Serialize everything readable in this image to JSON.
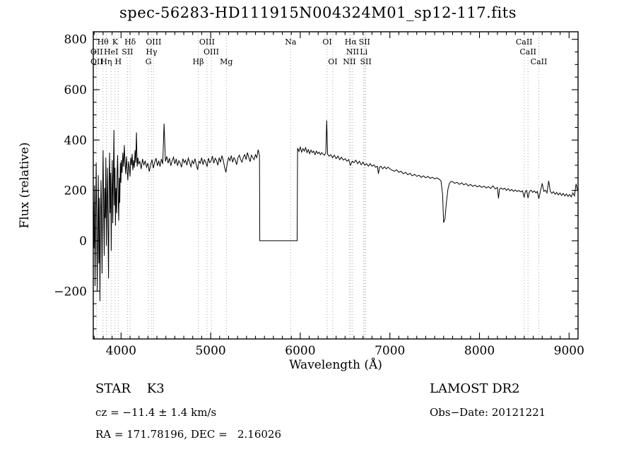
{
  "title": "spec-56283-HD111915N004324M01_sp12-117.fits",
  "annotations": {
    "object_class": "STAR    K3",
    "survey": "LAMOST DR2",
    "cz": "cz = −11.4 ± 1.4 km/s",
    "obs_date": "Obs−Date: 20121221",
    "radec": "RA = 171.78196, DEC =   2.16026"
  },
  "chart_data": {
    "type": "line",
    "title": "spec-56283-HD111915N004324M01_sp12-117.fits",
    "xlabel": "Wavelength (Å)",
    "ylabel": "Flux (relative)",
    "xlim": [
      3690,
      9100
    ],
    "ylim": [
      -390,
      830
    ],
    "xticks": [
      4000,
      5000,
      6000,
      7000,
      8000,
      9000
    ],
    "xtick_labels": [
      "4000",
      "5000",
      "6000",
      "7000",
      "8000",
      "9000"
    ],
    "yticks": [
      -200,
      0,
      200,
      400,
      600,
      800
    ],
    "ytick_labels": [
      "−200",
      "0",
      "200",
      "400",
      "600",
      "800"
    ],
    "grid": false,
    "legend": "none",
    "line_color": "#000000",
    "marker_line_color": "#a8a8a8",
    "spectral_marker_wavelengths": [
      3727,
      3798,
      3835,
      3889,
      3933,
      3968,
      4072,
      4102,
      4305,
      4340,
      4363,
      4861,
      4959,
      5007,
      5175,
      5893,
      6300,
      6363,
      6548,
      6563,
      6584,
      6708,
      6717,
      6731,
      8498,
      8542,
      8662
    ],
    "line_labels": [
      {
        "text": "Hθ",
        "row": 1,
        "wl": 3798
      },
      {
        "text": "K",
        "row": 1,
        "wl": 3933
      },
      {
        "text": "Hδ",
        "row": 1,
        "wl": 4102
      },
      {
        "text": "OIII",
        "row": 1,
        "wl": 4363
      },
      {
        "text": "OIII",
        "row": 1,
        "wl": 4959
      },
      {
        "text": "Na",
        "row": 1,
        "wl": 5893
      },
      {
        "text": "OI",
        "row": 1,
        "wl": 6300
      },
      {
        "text": "Hα",
        "row": 1,
        "wl": 6563
      },
      {
        "text": "SII",
        "row": 1,
        "wl": 6717
      },
      {
        "text": "CaII",
        "row": 1,
        "wl": 8498
      },
      {
        "text": "OII",
        "row": 2,
        "wl": 3727
      },
      {
        "text": "HeI",
        "row": 2,
        "wl": 3889
      },
      {
        "text": "SII",
        "row": 2,
        "wl": 4072
      },
      {
        "text": "Hγ",
        "row": 2,
        "wl": 4340
      },
      {
        "text": "OIII",
        "row": 2,
        "wl": 5007
      },
      {
        "text": "NII",
        "row": 2,
        "wl": 6584
      },
      {
        "text": "Li",
        "row": 2,
        "wl": 6708
      },
      {
        "text": "CaII",
        "row": 2,
        "wl": 8542
      },
      {
        "text": "OII",
        "row": 3,
        "wl": 3729
      },
      {
        "text": "Hη",
        "row": 3,
        "wl": 3835
      },
      {
        "text": "H",
        "row": 3,
        "wl": 3968
      },
      {
        "text": "G",
        "row": 3,
        "wl": 4305
      },
      {
        "text": "Hβ",
        "row": 3,
        "wl": 4861
      },
      {
        "text": "Mg",
        "row": 3,
        "wl": 5175
      },
      {
        "text": "OI",
        "row": 3,
        "wl": 6363
      },
      {
        "text": "NII",
        "row": 3,
        "wl": 6548
      },
      {
        "text": "SII",
        "row": 3,
        "wl": 6731
      },
      {
        "text": "CaII",
        "row": 3,
        "wl": 8662
      }
    ],
    "points": [
      [
        3692,
        150
      ],
      [
        3698,
        -30
      ],
      [
        3704,
        220
      ],
      [
        3710,
        -180
      ],
      [
        3716,
        60
      ],
      [
        3722,
        310
      ],
      [
        3728,
        90
      ],
      [
        3734,
        -200
      ],
      [
        3740,
        40
      ],
      [
        3746,
        260
      ],
      [
        3752,
        -90
      ],
      [
        3758,
        170
      ],
      [
        3764,
        -240
      ],
      [
        3770,
        20
      ],
      [
        3776,
        240
      ],
      [
        3782,
        100
      ],
      [
        3788,
        -130
      ],
      [
        3794,
        190
      ],
      [
        3800,
        360
      ],
      [
        3806,
        130
      ],
      [
        3812,
        -60
      ],
      [
        3818,
        210
      ],
      [
        3824,
        90
      ],
      [
        3830,
        330
      ],
      [
        3836,
        -20
      ],
      [
        3842,
        160
      ],
      [
        3848,
        290
      ],
      [
        3854,
        50
      ],
      [
        3860,
        -150
      ],
      [
        3866,
        230
      ],
      [
        3872,
        350
      ],
      [
        3878,
        110
      ],
      [
        3884,
        270
      ],
      [
        3890,
        -40
      ],
      [
        3896,
        180
      ],
      [
        3902,
        320
      ],
      [
        3908,
        70
      ],
      [
        3914,
        250
      ],
      [
        3920,
        440
      ],
      [
        3926,
        140
      ],
      [
        3932,
        290
      ],
      [
        3938,
        60
      ],
      [
        3944,
        210
      ],
      [
        3950,
        110
      ],
      [
        3956,
        270
      ],
      [
        3962,
        340
      ],
      [
        3968,
        170
      ],
      [
        3974,
        80
      ],
      [
        3980,
        250
      ],
      [
        3986,
        150
      ],
      [
        3992,
        310
      ],
      [
        3998,
        230
      ],
      [
        4004,
        320
      ],
      [
        4012,
        270
      ],
      [
        4020,
        350
      ],
      [
        4028,
        295
      ],
      [
        4036,
        380
      ],
      [
        4044,
        310
      ],
      [
        4052,
        265
      ],
      [
        4060,
        335
      ],
      [
        4068,
        285
      ],
      [
        4076,
        240
      ],
      [
        4084,
        315
      ],
      [
        4092,
        290
      ],
      [
        4100,
        255
      ],
      [
        4108,
        330
      ],
      [
        4116,
        300
      ],
      [
        4124,
        345
      ],
      [
        4132,
        280
      ],
      [
        4140,
        320
      ],
      [
        4148,
        290
      ],
      [
        4156,
        360
      ],
      [
        4164,
        310
      ],
      [
        4172,
        430
      ],
      [
        4180,
        295
      ],
      [
        4188,
        330
      ],
      [
        4196,
        305
      ],
      [
        4210,
        315
      ],
      [
        4225,
        285
      ],
      [
        4240,
        325
      ],
      [
        4255,
        300
      ],
      [
        4270,
        318
      ],
      [
        4285,
        292
      ],
      [
        4300,
        308
      ],
      [
        4315,
        275
      ],
      [
        4330,
        302
      ],
      [
        4345,
        322
      ],
      [
        4360,
        288
      ],
      [
        4375,
        312
      ],
      [
        4390,
        328
      ],
      [
        4405,
        298
      ],
      [
        4420,
        318
      ],
      [
        4435,
        295
      ],
      [
        4450,
        325
      ],
      [
        4465,
        305
      ],
      [
        4480,
        465
      ],
      [
        4495,
        315
      ],
      [
        4510,
        335
      ],
      [
        4525,
        308
      ],
      [
        4540,
        328
      ],
      [
        4555,
        298
      ],
      [
        4570,
        318
      ],
      [
        4585,
        332
      ],
      [
        4600,
        305
      ],
      [
        4615,
        325
      ],
      [
        4630,
        298
      ],
      [
        4645,
        318
      ],
      [
        4660,
        308
      ],
      [
        4675,
        292
      ],
      [
        4690,
        326
      ],
      [
        4705,
        310
      ],
      [
        4720,
        320
      ],
      [
        4735,
        300
      ],
      [
        4750,
        328
      ],
      [
        4765,
        312
      ],
      [
        4780,
        294
      ],
      [
        4795,
        318
      ],
      [
        4810,
        306
      ],
      [
        4825,
        326
      ],
      [
        4840,
        302
      ],
      [
        4855,
        282
      ],
      [
        4870,
        316
      ],
      [
        4885,
        308
      ],
      [
        4900,
        330
      ],
      [
        4915,
        302
      ],
      [
        4930,
        322
      ],
      [
        4945,
        312
      ],
      [
        4960,
        294
      ],
      [
        4975,
        328
      ],
      [
        4990,
        310
      ],
      [
        5005,
        318
      ],
      [
        5020,
        336
      ],
      [
        5035,
        308
      ],
      [
        5050,
        328
      ],
      [
        5065,
        318
      ],
      [
        5080,
        300
      ],
      [
        5095,
        330
      ],
      [
        5110,
        312
      ],
      [
        5125,
        338
      ],
      [
        5140,
        320
      ],
      [
        5155,
        292
      ],
      [
        5170,
        272
      ],
      [
        5185,
        308
      ],
      [
        5200,
        330
      ],
      [
        5215,
        318
      ],
      [
        5230,
        338
      ],
      [
        5245,
        312
      ],
      [
        5260,
        330
      ],
      [
        5275,
        320
      ],
      [
        5290,
        302
      ],
      [
        5305,
        330
      ],
      [
        5320,
        340
      ],
      [
        5335,
        322
      ],
      [
        5350,
        312
      ],
      [
        5365,
        332
      ],
      [
        5380,
        342
      ],
      [
        5395,
        322
      ],
      [
        5410,
        350
      ],
      [
        5425,
        332
      ],
      [
        5440,
        314
      ],
      [
        5455,
        340
      ],
      [
        5470,
        330
      ],
      [
        5485,
        322
      ],
      [
        5500,
        342
      ],
      [
        5515,
        330
      ],
      [
        5530,
        362
      ],
      [
        5545,
        338
      ],
      [
        5548,
        0
      ],
      [
        5965,
        0
      ],
      [
        5970,
        368
      ],
      [
        5985,
        355
      ],
      [
        6000,
        372
      ],
      [
        6015,
        352
      ],
      [
        6030,
        366
      ],
      [
        6045,
        356
      ],
      [
        6060,
        370
      ],
      [
        6075,
        350
      ],
      [
        6090,
        362
      ],
      [
        6105,
        346
      ],
      [
        6120,
        360
      ],
      [
        6135,
        350
      ],
      [
        6150,
        356
      ],
      [
        6165,
        342
      ],
      [
        6180,
        356
      ],
      [
        6195,
        346
      ],
      [
        6210,
        352
      ],
      [
        6225,
        342
      ],
      [
        6240,
        350
      ],
      [
        6255,
        344
      ],
      [
        6270,
        340
      ],
      [
        6285,
        350
      ],
      [
        6295,
        478
      ],
      [
        6305,
        344
      ],
      [
        6320,
        336
      ],
      [
        6340,
        342
      ],
      [
        6360,
        330
      ],
      [
        6380,
        340
      ],
      [
        6400,
        326
      ],
      [
        6420,
        336
      ],
      [
        6440,
        322
      ],
      [
        6460,
        332
      ],
      [
        6480,
        320
      ],
      [
        6500,
        326
      ],
      [
        6520,
        316
      ],
      [
        6540,
        322
      ],
      [
        6560,
        300
      ],
      [
        6580,
        316
      ],
      [
        6600,
        310
      ],
      [
        6620,
        320
      ],
      [
        6640,
        306
      ],
      [
        6660,
        316
      ],
      [
        6680,
        302
      ],
      [
        6700,
        312
      ],
      [
        6720,
        300
      ],
      [
        6740,
        306
      ],
      [
        6760,
        296
      ],
      [
        6780,
        306
      ],
      [
        6800,
        296
      ],
      [
        6820,
        302
      ],
      [
        6840,
        292
      ],
      [
        6860,
        296
      ],
      [
        6872,
        266
      ],
      [
        6884,
        292
      ],
      [
        6900,
        296
      ],
      [
        6920,
        286
      ],
      [
        6940,
        294
      ],
      [
        6960,
        286
      ],
      [
        6980,
        292
      ],
      [
        7000,
        286
      ],
      [
        7025,
        280
      ],
      [
        7050,
        276
      ],
      [
        7075,
        282
      ],
      [
        7100,
        272
      ],
      [
        7125,
        276
      ],
      [
        7150,
        266
      ],
      [
        7175,
        272
      ],
      [
        7200,
        262
      ],
      [
        7225,
        268
      ],
      [
        7250,
        258
      ],
      [
        7275,
        264
      ],
      [
        7300,
        256
      ],
      [
        7325,
        260
      ],
      [
        7350,
        252
      ],
      [
        7375,
        258
      ],
      [
        7400,
        250
      ],
      [
        7425,
        256
      ],
      [
        7450,
        248
      ],
      [
        7475,
        252
      ],
      [
        7500,
        246
      ],
      [
        7525,
        250
      ],
      [
        7550,
        244
      ],
      [
        7570,
        238
      ],
      [
        7588,
        185
      ],
      [
        7600,
        72
      ],
      [
        7615,
        88
      ],
      [
        7630,
        150
      ],
      [
        7648,
        205
      ],
      [
        7665,
        228
      ],
      [
        7682,
        236
      ],
      [
        7700,
        234
      ],
      [
        7725,
        228
      ],
      [
        7750,
        232
      ],
      [
        7775,
        224
      ],
      [
        7800,
        230
      ],
      [
        7825,
        222
      ],
      [
        7850,
        227
      ],
      [
        7875,
        218
      ],
      [
        7900,
        224
      ],
      [
        7925,
        216
      ],
      [
        7950,
        221
      ],
      [
        7975,
        214
      ],
      [
        8000,
        219
      ],
      [
        8025,
        212
      ],
      [
        8050,
        217
      ],
      [
        8075,
        210
      ],
      [
        8100,
        215
      ],
      [
        8125,
        208
      ],
      [
        8150,
        218
      ],
      [
        8175,
        206
      ],
      [
        8200,
        212
      ],
      [
        8212,
        168
      ],
      [
        8224,
        205
      ],
      [
        8240,
        210
      ],
      [
        8260,
        204
      ],
      [
        8280,
        209
      ],
      [
        8300,
        200
      ],
      [
        8320,
        207
      ],
      [
        8340,
        198
      ],
      [
        8360,
        204
      ],
      [
        8380,
        196
      ],
      [
        8400,
        202
      ],
      [
        8420,
        195
      ],
      [
        8440,
        200
      ],
      [
        8460,
        194
      ],
      [
        8480,
        198
      ],
      [
        8498,
        172
      ],
      [
        8512,
        196
      ],
      [
        8526,
        200
      ],
      [
        8542,
        170
      ],
      [
        8558,
        196
      ],
      [
        8576,
        201
      ],
      [
        8594,
        192
      ],
      [
        8612,
        198
      ],
      [
        8630,
        190
      ],
      [
        8646,
        196
      ],
      [
        8662,
        167
      ],
      [
        8678,
        194
      ],
      [
        8700,
        228
      ],
      [
        8718,
        196
      ],
      [
        8736,
        201
      ],
      [
        8754,
        190
      ],
      [
        8772,
        238
      ],
      [
        8790,
        196
      ],
      [
        8808,
        188
      ],
      [
        8826,
        195
      ],
      [
        8844,
        185
      ],
      [
        8862,
        192
      ],
      [
        8880,
        182
      ],
      [
        8898,
        190
      ],
      [
        8916,
        180
      ],
      [
        8934,
        188
      ],
      [
        8952,
        178
      ],
      [
        8970,
        186
      ],
      [
        8988,
        176
      ],
      [
        9006,
        184
      ],
      [
        9024,
        174
      ],
      [
        9042,
        190
      ],
      [
        9060,
        178
      ],
      [
        9078,
        226
      ],
      [
        9095,
        198
      ]
    ]
  }
}
